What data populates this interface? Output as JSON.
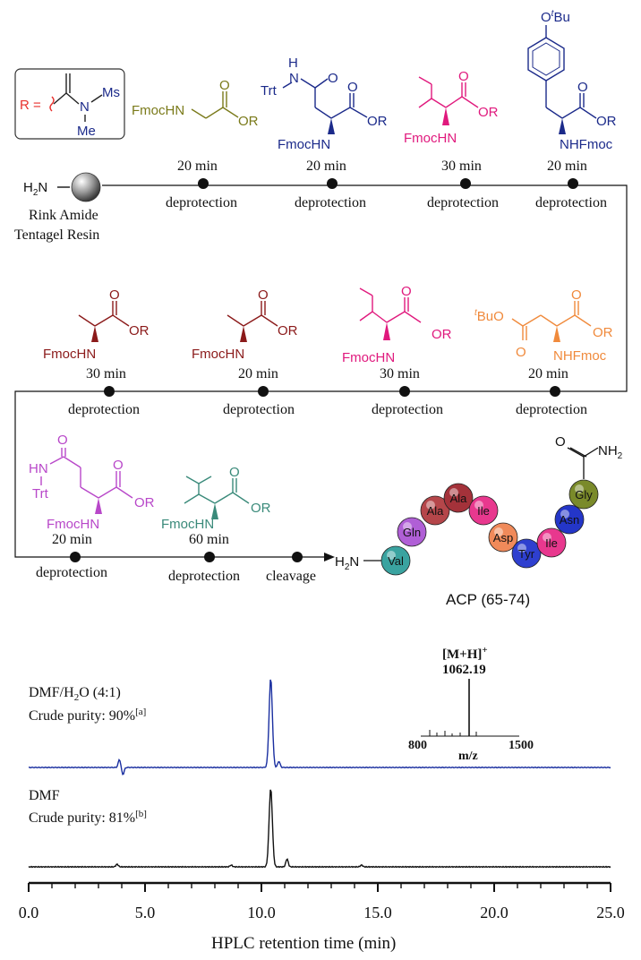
{
  "r_group": {
    "text": "R =",
    "ms": "Ms",
    "n": "N",
    "me": "Me",
    "color_r": "#e8302c"
  },
  "resin": {
    "h2n": "H2N",
    "label_line1": "Rink Amide",
    "label_line2": "Tentagel Resin"
  },
  "steps_row1": [
    {
      "time": "20 min",
      "step": "deprotection"
    },
    {
      "time": "20 min",
      "step": "deprotection"
    },
    {
      "time": "30 min",
      "step": "deprotection"
    },
    {
      "time": "20 min",
      "step": "deprotection"
    }
  ],
  "steps_row2": [
    {
      "time": "30 min",
      "step": "deprotection"
    },
    {
      "time": "20 min",
      "step": "deprotection"
    },
    {
      "time": "30 min",
      "step": "deprotection"
    },
    {
      "time": "20 min",
      "step": "deprotection"
    }
  ],
  "steps_row3": [
    {
      "time": "20 min",
      "step": "deprotection"
    },
    {
      "time": "60 min",
      "step": "deprotection"
    },
    {
      "time": "",
      "step": "cleavage"
    }
  ],
  "molecules": {
    "gly": {
      "fmochn": "FmocHN",
      "or": "OR",
      "o": "O",
      "color": "#7a7a1a"
    },
    "asn": {
      "trt": "Trt",
      "nh": "N",
      "h": "H",
      "o": "O",
      "or": "OR",
      "fmochn": "FmocHN",
      "color": "#1b2a8a"
    },
    "ile1": {
      "fmochn": "FmocHN",
      "or": "OR",
      "o": "O",
      "color": "#e0197d"
    },
    "tyr": {
      "otbu": "O",
      "tbu_t": "t",
      "tbu_bu": "Bu",
      "nhfmoc": "NHFmoc",
      "or": "OR",
      "o": "O",
      "color": "#1b2a8a"
    },
    "ala1": {
      "fmochn": "FmocHN",
      "or": "OR",
      "o": "O",
      "color": "#8b1a1a"
    },
    "ala2": {
      "fmochn": "FmocHN",
      "or": "OR",
      "o": "O",
      "color": "#8b1a1a"
    },
    "ile2": {
      "fmochn": "FmocHN",
      "or": "OR",
      "o": "O",
      "color": "#e0197d"
    },
    "asp": {
      "tbu_t": "t",
      "tbu_rest": "BuO",
      "o1": "O",
      "o2": "O",
      "or": "OR",
      "nhfmoc": "NHFmoc",
      "color": "#f08a3c"
    },
    "gln": {
      "hn": "HN",
      "trt": "Trt",
      "o": "O",
      "or": "OR",
      "fmochn": "FmocHN",
      "color": "#b847c9"
    },
    "val": {
      "fmochn": "FmocHN",
      "or": "OR",
      "o": "O",
      "color": "#3a8a7a"
    }
  },
  "peptide": {
    "h2n": "H2N",
    "nh2": "NH2",
    "o": "O",
    "name": "ACP (65-74)",
    "beads": [
      {
        "label": "Val",
        "color": "#3aa3a0"
      },
      {
        "label": "Gln",
        "color": "#b05fd6"
      },
      {
        "label": "Ala",
        "color": "#b5464a"
      },
      {
        "label": "Ala",
        "color": "#a4323a"
      },
      {
        "label": "Ile",
        "color": "#e8388e"
      },
      {
        "label": "Asp",
        "color": "#f08a5a"
      },
      {
        "label": "Tyr",
        "color": "#2e3fcf"
      },
      {
        "label": "Ile",
        "color": "#e8388e"
      },
      {
        "label": "Asn",
        "color": "#2436c8"
      },
      {
        "label": "Gly",
        "color": "#7a8a2a"
      }
    ]
  },
  "hplc": {
    "trace1_label": "DMF/H₂O (4:1)",
    "trace1_purity": "Crude purity: 90%",
    "trace1_note": "[a]",
    "trace1_color": "#1a2fa0",
    "trace2_label": "DMF",
    "trace2_purity": "Crude purity: 81%",
    "trace2_note": "[b]",
    "trace2_color": "#111111",
    "ms_ion": "[M+H]",
    "ms_plus": "+",
    "ms_value": "1062.19",
    "ms_xmin": "800",
    "ms_xmax": "1500",
    "ms_xlabel": "m/z",
    "xlabel": "HPLC retention time (min)",
    "ticks": [
      "0.0",
      "5.0",
      "10.0",
      "15.0",
      "20.0",
      "25.0"
    ]
  },
  "chart_data": {
    "type": "line",
    "xlabel": "HPLC retention time (min)",
    "xlim": [
      0,
      25
    ],
    "ticks": [
      0,
      5,
      10,
      15,
      20,
      25
    ],
    "series": [
      {
        "name": "DMF/H₂O (4:1)",
        "peaks": [
          {
            "x": 10.4,
            "rel_height": 1.0
          },
          {
            "x": 3.9,
            "rel_height": 0.08
          }
        ]
      },
      {
        "name": "DMF",
        "peaks": [
          {
            "x": 10.4,
            "rel_height": 1.0
          },
          {
            "x": 11.1,
            "rel_height": 0.08
          }
        ]
      }
    ]
  }
}
